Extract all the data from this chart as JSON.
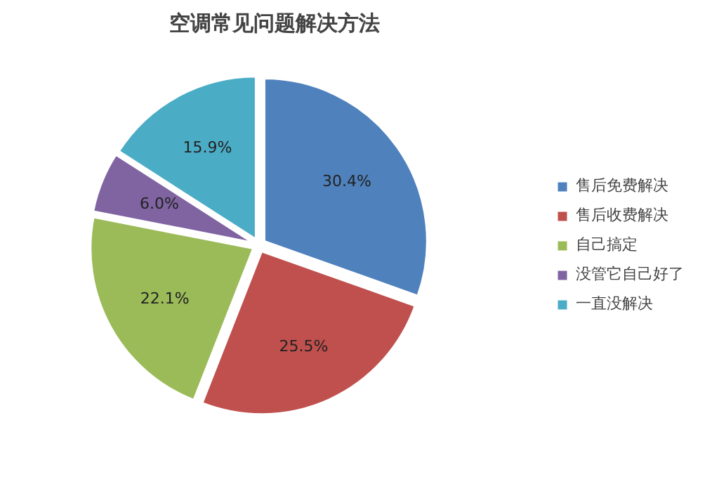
{
  "chart_data": {
    "type": "pie",
    "title": "空调常见问题解决方法",
    "categories": [
      "售后免费解决",
      "售后收费解决",
      "自己搞定",
      "没管它自己好了",
      "一直没解决"
    ],
    "values": [
      30.4,
      25.5,
      22.1,
      6.0,
      15.9
    ],
    "colors": [
      "#4f81bd",
      "#c0504d",
      "#9bbb59",
      "#8064a2",
      "#4bacc6"
    ],
    "value_labels": [
      "30.4%",
      "25.5%",
      "22.1%",
      "6.0%",
      "15.9%"
    ],
    "legend": "right"
  }
}
